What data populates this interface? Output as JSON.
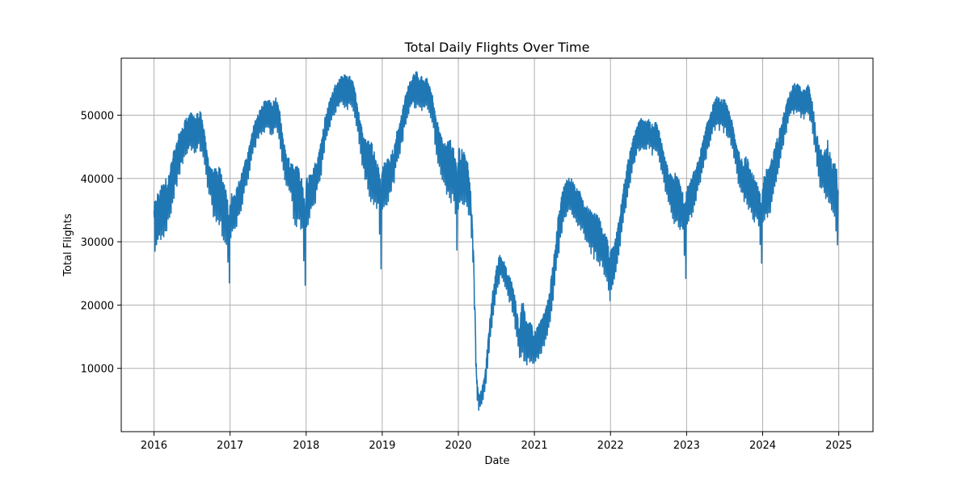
{
  "chart_data": {
    "type": "line",
    "title": "Total Daily Flights Over Time",
    "xlabel": "Date",
    "ylabel": "Total Flights",
    "xlim": [
      2015.57,
      2025.45
    ],
    "ylim": [
      0,
      59000
    ],
    "x_ticks": [
      2016,
      2017,
      2018,
      2019,
      2020,
      2021,
      2022,
      2023,
      2024,
      2025
    ],
    "x_tick_labels": [
      "2016",
      "2017",
      "2018",
      "2019",
      "2020",
      "2021",
      "2022",
      "2023",
      "2024",
      "2025"
    ],
    "y_ticks": [
      10000,
      20000,
      30000,
      40000,
      50000
    ],
    "y_tick_labels": [
      "10000",
      "20000",
      "30000",
      "40000",
      "50000"
    ],
    "grid": true,
    "color": "#1f77b4",
    "series": [
      {
        "values_note": "approximate daily totals sampled roughly every ~2.5 weeks; high/low capture the day-to-day band",
        "x": [
          2016.0,
          2016.05,
          2016.1,
          2016.15,
          2016.2,
          2016.25,
          2016.3,
          2016.35,
          2016.4,
          2016.45,
          2016.5,
          2016.55,
          2016.6,
          2016.65,
          2016.7,
          2016.75,
          2016.8,
          2016.85,
          2016.9,
          2016.95,
          2016.99,
          2017.0,
          2017.05,
          2017.1,
          2017.15,
          2017.2,
          2017.25,
          2017.3,
          2017.35,
          2017.4,
          2017.45,
          2017.5,
          2017.55,
          2017.6,
          2017.65,
          2017.7,
          2017.75,
          2017.8,
          2017.85,
          2017.9,
          2017.95,
          2017.99,
          2018.0,
          2018.05,
          2018.1,
          2018.15,
          2018.2,
          2018.25,
          2018.3,
          2018.35,
          2018.4,
          2018.45,
          2018.5,
          2018.55,
          2018.6,
          2018.65,
          2018.7,
          2018.75,
          2018.8,
          2018.85,
          2018.9,
          2018.95,
          2018.99,
          2019.0,
          2019.05,
          2019.1,
          2019.15,
          2019.2,
          2019.25,
          2019.3,
          2019.35,
          2019.4,
          2019.45,
          2019.5,
          2019.55,
          2019.6,
          2019.65,
          2019.7,
          2019.75,
          2019.8,
          2019.85,
          2019.9,
          2019.95,
          2019.99,
          2020.0,
          2020.05,
          2020.1,
          2020.15,
          2020.2,
          2020.24,
          2020.27,
          2020.3,
          2020.35,
          2020.4,
          2020.45,
          2020.5,
          2020.55,
          2020.6,
          2020.65,
          2020.7,
          2020.75,
          2020.8,
          2020.85,
          2020.9,
          2020.95,
          2020.99,
          2021.0,
          2021.05,
          2021.1,
          2021.15,
          2021.2,
          2021.25,
          2021.3,
          2021.35,
          2021.4,
          2021.45,
          2021.5,
          2021.55,
          2021.6,
          2021.65,
          2021.7,
          2021.75,
          2021.8,
          2021.85,
          2021.9,
          2021.95,
          2021.99,
          2022.0,
          2022.05,
          2022.1,
          2022.15,
          2022.2,
          2022.25,
          2022.3,
          2022.35,
          2022.4,
          2022.45,
          2022.5,
          2022.55,
          2022.6,
          2022.65,
          2022.7,
          2022.75,
          2022.8,
          2022.85,
          2022.9,
          2022.95,
          2022.99,
          2023.0,
          2023.05,
          2023.1,
          2023.15,
          2023.2,
          2023.25,
          2023.3,
          2023.35,
          2023.4,
          2023.45,
          2023.5,
          2023.55,
          2023.6,
          2023.65,
          2023.7,
          2023.75,
          2023.8,
          2023.85,
          2023.9,
          2023.95,
          2023.99,
          2024.0,
          2024.05,
          2024.1,
          2024.15,
          2024.2,
          2024.25,
          2024.3,
          2024.35,
          2024.4,
          2024.45,
          2024.5,
          2024.55,
          2024.6,
          2024.65,
          2024.7,
          2024.75,
          2024.8,
          2024.85,
          2024.9,
          2024.95,
          2024.99
        ],
        "high": [
          36000,
          38000,
          39000,
          40000,
          41000,
          44000,
          46000,
          48000,
          49500,
          50000,
          50500,
          50000,
          51000,
          49000,
          44000,
          42000,
          41500,
          42500,
          40000,
          38000,
          36000,
          38000,
          37500,
          39000,
          41000,
          43000,
          45000,
          48000,
          50000,
          51000,
          52500,
          52500,
          52000,
          52800,
          51000,
          46000,
          44000,
          42500,
          42000,
          42000,
          40000,
          37000,
          40000,
          41000,
          42000,
          44000,
          46000,
          50000,
          52000,
          54000,
          55500,
          56000,
          56500,
          56000,
          56500,
          54000,
          50000,
          47000,
          46000,
          46500,
          44000,
          42000,
          40000,
          42000,
          43000,
          43500,
          45000,
          48000,
          50000,
          53000,
          55000,
          56500,
          57000,
          56500,
          55500,
          56000,
          54000,
          50000,
          48000,
          46000,
          45500,
          47000,
          44000,
          42500,
          45000,
          45500,
          44000,
          41000,
          29000,
          9000,
          5500,
          6500,
          9000,
          16000,
          22000,
          26000,
          28500,
          27000,
          25000,
          24000,
          21000,
          16500,
          22500,
          17000,
          17500,
          16000,
          16000,
          17000,
          18000,
          20000,
          22500,
          27000,
          33000,
          37000,
          39500,
          40500,
          40000,
          38500,
          38000,
          36000,
          35500,
          35000,
          34500,
          34000,
          32000,
          31000,
          28000,
          29000,
          29500,
          33000,
          37000,
          41000,
          44000,
          46500,
          48500,
          49500,
          49000,
          49500,
          48500,
          49000,
          47000,
          44000,
          42000,
          40500,
          41000,
          40000,
          38000,
          36000,
          38500,
          39500,
          41500,
          43000,
          45500,
          48000,
          50000,
          52000,
          53000,
          52500,
          52500,
          51000,
          49000,
          46000,
          44000,
          43000,
          44000,
          41500,
          40000,
          38500,
          36000,
          40000,
          41500,
          42500,
          44500,
          47000,
          49000,
          51500,
          53500,
          55000,
          55000,
          54500,
          54000,
          55000,
          52500,
          48000,
          45000,
          44000,
          46500,
          43000,
          42500,
          41000
        ],
        "low": [
          25500,
          27500,
          29000,
          30000,
          31500,
          35000,
          37500,
          40000,
          42000,
          43000,
          43500,
          43000,
          43500,
          41000,
          38000,
          35000,
          31500,
          30500,
          29500,
          28500,
          18500,
          29000,
          30500,
          32000,
          33500,
          37000,
          40000,
          43000,
          45000,
          46000,
          46500,
          46500,
          46000,
          46500,
          44000,
          40000,
          37000,
          36000,
          31000,
          30500,
          30500,
          18500,
          31000,
          32500,
          34000,
          37000,
          40000,
          44000,
          47000,
          49000,
          50000,
          50500,
          50500,
          50000,
          50500,
          48000,
          44000,
          40000,
          37000,
          35000,
          34500,
          33500,
          20500,
          33500,
          34500,
          35500,
          38000,
          41500,
          44000,
          47000,
          49500,
          50500,
          50500,
          50000,
          49500,
          50000,
          48500,
          44000,
          40000,
          38000,
          35500,
          35000,
          34500,
          22000,
          33000,
          34000,
          34000,
          32500,
          24000,
          5000,
          3000,
          3800,
          5500,
          11000,
          17000,
          21000,
          23500,
          22500,
          20500,
          19000,
          15000,
          11000,
          10000,
          9500,
          10500,
          8500,
          9500,
          10500,
          12000,
          13500,
          16000,
          20000,
          25000,
          30000,
          32500,
          34000,
          33500,
          32000,
          31500,
          30000,
          28500,
          27000,
          26000,
          25500,
          24000,
          23000,
          17500,
          20000,
          22000,
          26000,
          30000,
          34000,
          38000,
          41000,
          43000,
          44000,
          44000,
          44000,
          43000,
          43500,
          41500,
          38000,
          35000,
          33000,
          31000,
          30500,
          30000,
          22000,
          31000,
          32500,
          34000,
          36500,
          39000,
          42000,
          44500,
          46500,
          47000,
          47000,
          46500,
          45500,
          43500,
          40000,
          37000,
          35000,
          33500,
          33000,
          32000,
          31000,
          23000,
          31500,
          32500,
          33500,
          36000,
          39500,
          43000,
          46000,
          48500,
          49500,
          49500,
          49000,
          48500,
          49000,
          47000,
          42000,
          38000,
          36000,
          34000,
          33500,
          33000,
          23500
        ]
      }
    ]
  }
}
